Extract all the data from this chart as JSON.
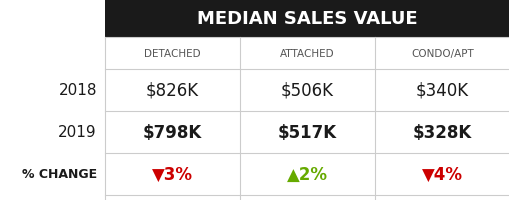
{
  "title": "MEDIAN SALES VALUE",
  "title_bg": "#1a1a1a",
  "title_color": "#ffffff",
  "col_headers": [
    "DETACHED",
    "ATTACHED",
    "CONDO/APT"
  ],
  "row_labels": [
    "2018",
    "2019",
    "% CHANGE"
  ],
  "values_2018": [
    "$826K",
    "$506K",
    "$340K"
  ],
  "values_2019": [
    "$798K",
    "$517K",
    "$328K"
  ],
  "changes": [
    "▼3%",
    "▲2%",
    "▼4%"
  ],
  "change_colors": [
    "#cc0000",
    "#66aa00",
    "#cc0000"
  ],
  "bg_color": "#ffffff",
  "grid_color": "#cccccc",
  "text_color_dark": "#1a1a1a",
  "row_label_color": "#1a1a1a",
  "col_header_color": "#555555"
}
